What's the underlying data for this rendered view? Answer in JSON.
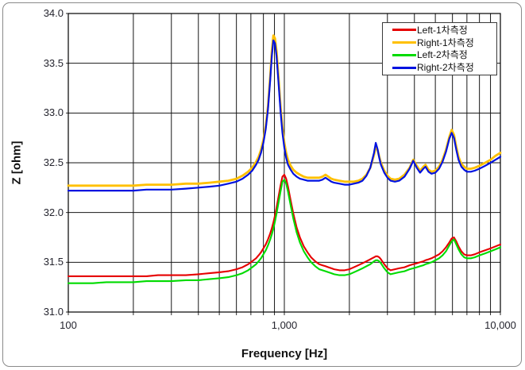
{
  "chart_data": {
    "type": "line",
    "title": "",
    "xlabel": "Frequency [Hz]",
    "ylabel": "Z [ohm]",
    "x_scale": "log",
    "xlim": [
      100,
      10000
    ],
    "ylim": [
      31.0,
      34.0
    ],
    "grid": "both",
    "legend_position": "top-right-inside",
    "x_ticks": [
      {
        "value": 100,
        "label": "100"
      },
      {
        "value": 1000,
        "label": "1,000"
      },
      {
        "value": 10000,
        "label": "10,000"
      }
    ],
    "y_ticks": [
      {
        "value": 34.0,
        "label": "34.0"
      },
      {
        "value": 33.5,
        "label": "33.5"
      },
      {
        "value": 33.0,
        "label": "33.0"
      },
      {
        "value": 32.5,
        "label": "32.5"
      },
      {
        "value": 32.0,
        "label": "32.0"
      },
      {
        "value": 31.5,
        "label": "31.5"
      },
      {
        "value": 31.0,
        "label": "31.0"
      }
    ],
    "x": [
      100,
      115,
      130,
      150,
      175,
      200,
      230,
      260,
      300,
      350,
      400,
      450,
      500,
      550,
      600,
      640,
      680,
      710,
      740,
      760,
      780,
      800,
      820,
      840,
      860,
      875,
      890,
      905,
      920,
      940,
      960,
      980,
      1000,
      1020,
      1040,
      1070,
      1100,
      1140,
      1180,
      1230,
      1280,
      1330,
      1390,
      1450,
      1500,
      1550,
      1600,
      1650,
      1700,
      1800,
      1900,
      2000,
      2100,
      2200,
      2300,
      2400,
      2500,
      2600,
      2650,
      2700,
      2750,
      2800,
      2900,
      3000,
      3100,
      3250,
      3400,
      3600,
      3800,
      3950,
      4100,
      4250,
      4400,
      4500,
      4650,
      4800,
      5000,
      5200,
      5400,
      5600,
      5800,
      5950,
      6100,
      6250,
      6400,
      6600,
      6800,
      7000,
      7300,
      7600,
      8000,
      8500,
      9000,
      9500,
      10000
    ],
    "series": [
      {
        "id": "left-1",
        "name": "Left-1차측정",
        "color": "#e60000",
        "width": 2.1,
        "values": [
          31.36,
          31.36,
          31.36,
          31.36,
          31.36,
          31.36,
          31.36,
          31.37,
          31.37,
          31.37,
          31.38,
          31.39,
          31.4,
          31.41,
          31.43,
          31.45,
          31.48,
          31.51,
          31.54,
          31.57,
          31.6,
          31.64,
          31.68,
          31.73,
          31.79,
          31.84,
          31.9,
          31.97,
          32.05,
          32.16,
          32.27,
          32.36,
          32.38,
          32.34,
          32.26,
          32.12,
          31.99,
          31.85,
          31.75,
          31.66,
          31.6,
          31.55,
          31.51,
          31.48,
          31.47,
          31.46,
          31.45,
          31.44,
          31.43,
          31.42,
          31.42,
          31.43,
          31.45,
          31.47,
          31.49,
          31.51,
          31.53,
          31.55,
          31.56,
          31.56,
          31.55,
          31.53,
          31.48,
          31.44,
          31.42,
          31.43,
          31.44,
          31.45,
          31.47,
          31.48,
          31.49,
          31.5,
          31.51,
          31.52,
          31.53,
          31.54,
          31.56,
          31.58,
          31.61,
          31.65,
          31.7,
          31.74,
          31.75,
          31.71,
          31.66,
          31.61,
          31.58,
          31.57,
          31.57,
          31.58,
          31.6,
          31.62,
          31.64,
          31.66,
          31.68
        ]
      },
      {
        "id": "right-1",
        "name": "Right-1차측정",
        "color": "#ffc000",
        "width": 2.8,
        "values": [
          32.27,
          32.27,
          32.27,
          32.27,
          32.27,
          32.27,
          32.28,
          32.28,
          32.28,
          32.29,
          32.29,
          32.3,
          32.31,
          32.32,
          32.34,
          32.37,
          32.41,
          32.45,
          32.51,
          32.56,
          32.63,
          32.73,
          32.87,
          33.07,
          33.37,
          33.62,
          33.78,
          33.75,
          33.62,
          33.35,
          33.07,
          32.85,
          32.7,
          32.6,
          32.53,
          32.47,
          32.43,
          32.4,
          32.38,
          32.36,
          32.35,
          32.35,
          32.35,
          32.35,
          32.36,
          32.38,
          32.36,
          32.34,
          32.33,
          32.32,
          32.31,
          32.31,
          32.31,
          32.32,
          32.34,
          32.38,
          32.45,
          32.58,
          32.66,
          32.63,
          32.56,
          32.5,
          32.42,
          32.37,
          32.34,
          32.33,
          32.34,
          32.38,
          32.45,
          32.53,
          32.47,
          32.42,
          32.46,
          32.48,
          32.43,
          32.41,
          32.42,
          32.46,
          32.53,
          32.63,
          32.76,
          32.83,
          32.78,
          32.66,
          32.56,
          32.49,
          32.46,
          32.44,
          32.44,
          32.45,
          32.47,
          32.5,
          32.53,
          32.57,
          32.6
        ]
      },
      {
        "id": "left-2",
        "name": "Left-2차측정",
        "color": "#00db00",
        "width": 2.1,
        "values": [
          31.29,
          31.29,
          31.29,
          31.3,
          31.3,
          31.3,
          31.31,
          31.31,
          31.31,
          31.32,
          31.32,
          31.33,
          31.34,
          31.35,
          31.37,
          31.39,
          31.42,
          31.45,
          31.48,
          31.51,
          31.54,
          31.58,
          31.62,
          31.67,
          31.73,
          31.78,
          31.84,
          31.91,
          31.99,
          32.1,
          32.21,
          32.31,
          32.33,
          32.29,
          32.21,
          32.07,
          31.94,
          31.8,
          31.7,
          31.61,
          31.55,
          31.5,
          31.46,
          31.43,
          31.42,
          31.41,
          31.4,
          31.39,
          31.38,
          31.37,
          31.37,
          31.38,
          31.4,
          31.42,
          31.44,
          31.46,
          31.48,
          31.51,
          31.52,
          31.52,
          31.51,
          31.49,
          31.44,
          31.4,
          31.38,
          31.39,
          31.4,
          31.41,
          31.43,
          31.44,
          31.45,
          31.46,
          31.47,
          31.48,
          31.49,
          31.5,
          31.52,
          31.54,
          31.57,
          31.61,
          31.67,
          31.71,
          31.73,
          31.68,
          31.63,
          31.58,
          31.55,
          31.54,
          31.54,
          31.55,
          31.57,
          31.59,
          31.61,
          31.63,
          31.65
        ]
      },
      {
        "id": "right-2",
        "name": "Right-2차측정",
        "color": "#0012e0",
        "width": 2.2,
        "values": [
          32.22,
          32.22,
          32.22,
          32.22,
          32.22,
          32.22,
          32.23,
          32.23,
          32.23,
          32.24,
          32.25,
          32.26,
          32.27,
          32.29,
          32.31,
          32.34,
          32.38,
          32.42,
          32.48,
          32.53,
          32.6,
          32.7,
          32.84,
          33.04,
          33.33,
          33.57,
          33.73,
          33.7,
          33.57,
          33.3,
          33.02,
          32.8,
          32.65,
          32.55,
          32.48,
          32.43,
          32.39,
          32.36,
          32.34,
          32.33,
          32.32,
          32.32,
          32.32,
          32.32,
          32.33,
          32.35,
          32.33,
          32.31,
          32.3,
          32.29,
          32.28,
          32.28,
          32.29,
          32.3,
          32.32,
          32.37,
          32.45,
          32.6,
          32.7,
          32.64,
          32.55,
          32.48,
          32.4,
          32.35,
          32.32,
          32.31,
          32.32,
          32.36,
          32.44,
          32.52,
          32.45,
          32.4,
          32.44,
          32.46,
          32.41,
          32.39,
          32.4,
          32.44,
          32.51,
          32.61,
          32.74,
          32.8,
          32.75,
          32.63,
          32.53,
          32.46,
          32.43,
          32.41,
          32.41,
          32.42,
          32.44,
          32.47,
          32.5,
          32.53,
          32.56
        ]
      }
    ]
  },
  "colors": {
    "grid": "#161616",
    "frame": "#000000",
    "tick": "#2a2a2a",
    "text": "#24242e",
    "outer_border": "#8a8a8a",
    "legend_border": "#3a3a3a",
    "background": "#ffffff"
  }
}
